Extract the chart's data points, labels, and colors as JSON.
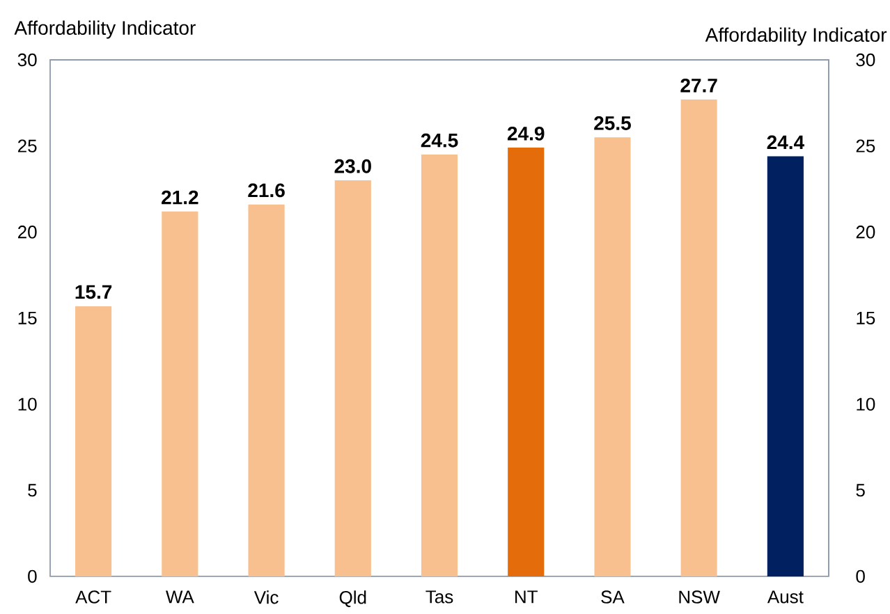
{
  "chart_data": {
    "type": "bar",
    "ylabel": "Affordability Indicator",
    "y2label": "Affordability Indicator",
    "categories": [
      "ACT",
      "WA",
      "Vic",
      "Qld",
      "Tas",
      "NT",
      "SA",
      "NSW",
      "Aust"
    ],
    "values": [
      15.7,
      21.2,
      21.6,
      23.0,
      24.5,
      24.9,
      25.5,
      27.7,
      24.4
    ],
    "value_labels": [
      "15.7",
      "21.2",
      "21.6",
      "23.0",
      "24.5",
      "24.9",
      "25.5",
      "27.7",
      "24.4"
    ],
    "colors": [
      "#f9c08f",
      "#f9c08f",
      "#f9c08f",
      "#f9c08f",
      "#f9c08f",
      "#e46c0a",
      "#f9c08f",
      "#f9c08f",
      "#002060"
    ],
    "ylim": [
      0,
      30
    ],
    "yticks": [
      0,
      5,
      10,
      15,
      20,
      25,
      30
    ],
    "y2lim": [
      0,
      30
    ],
    "y2ticks": [
      0,
      5,
      10,
      15,
      20,
      25,
      30
    ]
  }
}
